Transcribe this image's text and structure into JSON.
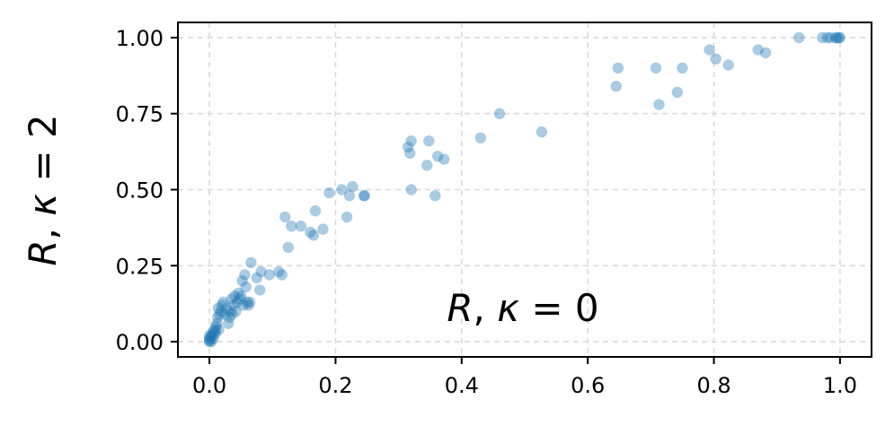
{
  "chart_data": {
    "type": "scatter",
    "title": "",
    "xlabel": "",
    "ylabel": {
      "var": "R",
      "sep": ", ",
      "sym": "κ",
      "rel": " = ",
      "val": "2"
    },
    "annotation": {
      "var": "R",
      "sep": ", ",
      "sym": "κ",
      "rel": " = ",
      "val": "0"
    },
    "xlim": [
      -0.05,
      1.05
    ],
    "ylim": [
      -0.05,
      1.05
    ],
    "x_ticks": [
      0.0,
      0.2,
      0.4,
      0.6,
      0.8,
      1.0
    ],
    "x_tick_labels": [
      "0.0",
      "0.2",
      "0.4",
      "0.6",
      "0.8",
      "1.0"
    ],
    "y_ticks": [
      0.0,
      0.25,
      0.5,
      0.75,
      1.0
    ],
    "y_tick_labels": [
      "0.00",
      "0.25",
      "0.50",
      "0.75",
      "1.00"
    ],
    "grid": true,
    "marker_color": "#1f77b4",
    "marker_alpha": 0.38,
    "points": [
      [
        0.0,
        0.0
      ],
      [
        0.0,
        0.01
      ],
      [
        0.0,
        0.02
      ],
      [
        0.0,
        0.005
      ],
      [
        0.002,
        0.015
      ],
      [
        0.003,
        0.0
      ],
      [
        0.004,
        0.02
      ],
      [
        0.005,
        0.03
      ],
      [
        0.006,
        0.01
      ],
      [
        0.008,
        0.04
      ],
      [
        0.009,
        0.025
      ],
      [
        0.01,
        0.05
      ],
      [
        0.01,
        0.035
      ],
      [
        0.012,
        0.06
      ],
      [
        0.013,
        0.08
      ],
      [
        0.014,
        0.11
      ],
      [
        0.015,
        0.04
      ],
      [
        0.016,
        0.09
      ],
      [
        0.018,
        0.1
      ],
      [
        0.02,
        0.12
      ],
      [
        0.022,
        0.13
      ],
      [
        0.025,
        0.09
      ],
      [
        0.027,
        0.11
      ],
      [
        0.03,
        0.06
      ],
      [
        0.032,
        0.08
      ],
      [
        0.033,
        0.1
      ],
      [
        0.035,
        0.14
      ],
      [
        0.036,
        0.09
      ],
      [
        0.038,
        0.12
      ],
      [
        0.04,
        0.15
      ],
      [
        0.042,
        0.1
      ],
      [
        0.044,
        0.13
      ],
      [
        0.046,
        0.16
      ],
      [
        0.048,
        0.14
      ],
      [
        0.05,
        0.15
      ],
      [
        0.052,
        0.2
      ],
      [
        0.054,
        0.12
      ],
      [
        0.056,
        0.22
      ],
      [
        0.058,
        0.18
      ],
      [
        0.06,
        0.13
      ],
      [
        0.062,
        0.12
      ],
      [
        0.064,
        0.13
      ],
      [
        0.066,
        0.26
      ],
      [
        0.075,
        0.21
      ],
      [
        0.08,
        0.17
      ],
      [
        0.082,
        0.23
      ],
      [
        0.095,
        0.22
      ],
      [
        0.11,
        0.23
      ],
      [
        0.115,
        0.22
      ],
      [
        0.12,
        0.41
      ],
      [
        0.125,
        0.31
      ],
      [
        0.13,
        0.38
      ],
      [
        0.145,
        0.38
      ],
      [
        0.16,
        0.36
      ],
      [
        0.165,
        0.35
      ],
      [
        0.168,
        0.43
      ],
      [
        0.18,
        0.37
      ],
      [
        0.19,
        0.49
      ],
      [
        0.21,
        0.5
      ],
      [
        0.218,
        0.41
      ],
      [
        0.222,
        0.48
      ],
      [
        0.227,
        0.51
      ],
      [
        0.245,
        0.48
      ],
      [
        0.246,
        0.48
      ],
      [
        0.315,
        0.64
      ],
      [
        0.318,
        0.62
      ],
      [
        0.32,
        0.66
      ],
      [
        0.32,
        0.5
      ],
      [
        0.345,
        0.58
      ],
      [
        0.348,
        0.66
      ],
      [
        0.358,
        0.48
      ],
      [
        0.362,
        0.61
      ],
      [
        0.372,
        0.6
      ],
      [
        0.43,
        0.67
      ],
      [
        0.46,
        0.75
      ],
      [
        0.527,
        0.69
      ],
      [
        0.645,
        0.84
      ],
      [
        0.648,
        0.9
      ],
      [
        0.708,
        0.9
      ],
      [
        0.713,
        0.78
      ],
      [
        0.742,
        0.82
      ],
      [
        0.75,
        0.9
      ],
      [
        0.793,
        0.96
      ],
      [
        0.803,
        0.93
      ],
      [
        0.823,
        0.91
      ],
      [
        0.87,
        0.96
      ],
      [
        0.882,
        0.95
      ],
      [
        0.935,
        1.0
      ],
      [
        0.972,
        1.0
      ],
      [
        0.98,
        1.0
      ],
      [
        0.985,
        1.0
      ],
      [
        0.993,
        1.0
      ],
      [
        0.998,
        1.0
      ],
      [
        1.0,
        1.0
      ],
      [
        0.995,
        0.998
      ]
    ]
  }
}
